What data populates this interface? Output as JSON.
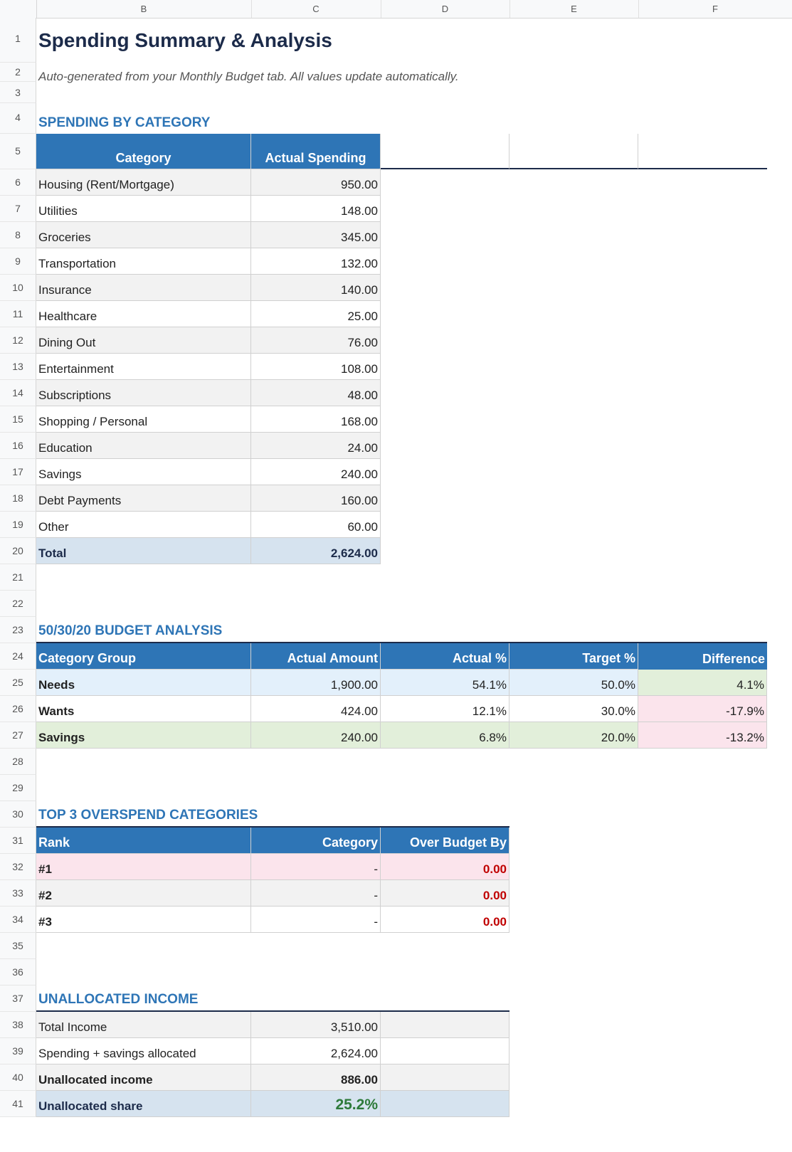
{
  "columns": [
    "B",
    "C",
    "D",
    "E",
    "F"
  ],
  "rows": [
    "1",
    "2",
    "3",
    "4",
    "5",
    "6",
    "7",
    "8",
    "9",
    "10",
    "11",
    "12",
    "13",
    "14",
    "15",
    "16",
    "17",
    "18",
    "19",
    "20",
    "21",
    "22",
    "23",
    "24",
    "25",
    "26",
    "27",
    "28",
    "29",
    "30",
    "31",
    "32",
    "33",
    "34",
    "35",
    "36",
    "37",
    "38",
    "39",
    "40",
    "41"
  ],
  "title": "Spending Summary & Analysis",
  "subtitle": "Auto-generated from your Monthly Budget tab. All values update automatically.",
  "spending": {
    "heading": "SPENDING BY CATEGORY",
    "col_category": "Category",
    "col_actual": "Actual Spending",
    "items": [
      {
        "category": "Housing (Rent/Mortgage)",
        "amount": "950.00"
      },
      {
        "category": "Utilities",
        "amount": "148.00"
      },
      {
        "category": "Groceries",
        "amount": "345.00"
      },
      {
        "category": "Transportation",
        "amount": "132.00"
      },
      {
        "category": "Insurance",
        "amount": "140.00"
      },
      {
        "category": "Healthcare",
        "amount": "25.00"
      },
      {
        "category": "Dining Out",
        "amount": "76.00"
      },
      {
        "category": "Entertainment",
        "amount": "108.00"
      },
      {
        "category": "Subscriptions",
        "amount": "48.00"
      },
      {
        "category": "Shopping / Personal",
        "amount": "168.00"
      },
      {
        "category": "Education",
        "amount": "24.00"
      },
      {
        "category": "Savings",
        "amount": "240.00"
      },
      {
        "category": "Debt Payments",
        "amount": "160.00"
      },
      {
        "category": "Other",
        "amount": "60.00"
      }
    ],
    "total_label": "Total",
    "total_value": "2,624.00"
  },
  "budget": {
    "heading": "50/30/20 BUDGET ANALYSIS",
    "headers": [
      "Category Group",
      "Actual Amount",
      "Actual %",
      "Target %",
      "Difference"
    ],
    "rows": [
      {
        "group": "Needs",
        "amount": "1,900.00",
        "actual_pct": "54.1%",
        "target_pct": "50.0%",
        "diff": "4.1%"
      },
      {
        "group": "Wants",
        "amount": "424.00",
        "actual_pct": "12.1%",
        "target_pct": "30.0%",
        "diff": "-17.9%"
      },
      {
        "group": "Savings",
        "amount": "240.00",
        "actual_pct": "6.8%",
        "target_pct": "20.0%",
        "diff": "-13.2%"
      }
    ]
  },
  "overspend": {
    "heading": "TOP 3 OVERSPEND CATEGORIES",
    "headers": [
      "Rank",
      "Category",
      "Over Budget By"
    ],
    "rows": [
      {
        "rank": "#1",
        "category": "-",
        "over": "0.00"
      },
      {
        "rank": "#2",
        "category": "-",
        "over": "0.00"
      },
      {
        "rank": "#3",
        "category": "-",
        "over": "0.00"
      }
    ]
  },
  "unallocated": {
    "heading": "UNALLOCATED INCOME",
    "total_income_label": "Total Income",
    "total_income": "3,510.00",
    "allocated_label": "Spending + savings allocated",
    "allocated": "2,624.00",
    "unallocated_label": "Unallocated income",
    "unallocated": "886.00",
    "share_label": "Unallocated share",
    "share": "25.2%"
  }
}
